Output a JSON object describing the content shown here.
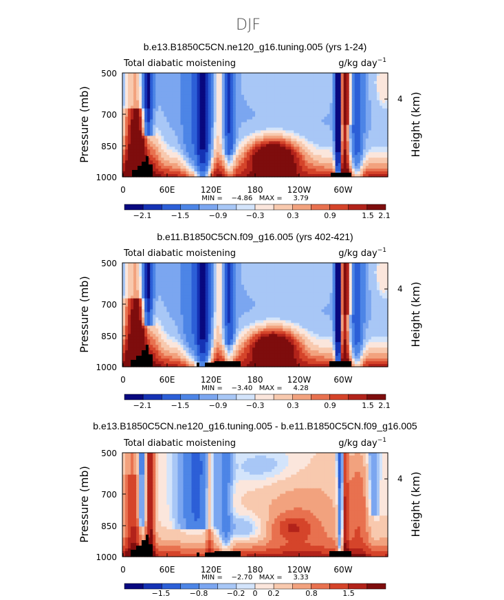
{
  "page_title": "DJF",
  "colors": {
    "scale": [
      "#08087f",
      "#1532b4",
      "#2c5fd7",
      "#4d85e6",
      "#7ba6f0",
      "#a8c7f6",
      "#d3e4fb",
      "#fbe6dc",
      "#f8c9ae",
      "#f2a27e",
      "#e8714f",
      "#d5442a",
      "#b2231a",
      "#7e0d0d"
    ],
    "land": "#000000"
  },
  "chart_data": [
    {
      "type": "contour",
      "title": "b.e13.B1850C5CN.ne120_g16.tuning.005 (yrs 1-24)",
      "left_label": "Total diabatic moistening",
      "units": "g/kg day",
      "units_exp": "−1",
      "ylabel": "Pressure (mb)",
      "ylabel_right": "Height (km)",
      "y_ticks": [
        "500",
        "700",
        "850",
        "1000"
      ],
      "y_right_ticks": [
        "4"
      ],
      "x_ticks": [
        "0",
        "60E",
        "120E",
        "180",
        "120W",
        "60W"
      ],
      "stats": "MIN =    −4.86   MAX =     3.79",
      "colorbar_ticks": [
        "−2.1",
        "−1.5",
        "−0.9",
        "−0.3",
        "0.3",
        "0.9",
        "1.5",
        "2.1"
      ],
      "pattern": "A",
      "scale": 1.0
    },
    {
      "type": "contour",
      "title": "b.e11.B1850C5CN.f09_g16.005 (yrs 402-421)",
      "left_label": "Total diabatic moistening",
      "units": "g/kg day",
      "units_exp": "−1",
      "ylabel": "Pressure (mb)",
      "ylabel_right": "Height (km)",
      "y_ticks": [
        "500",
        "700",
        "850",
        "1000"
      ],
      "y_right_ticks": [
        "4"
      ],
      "x_ticks": [
        "0",
        "60E",
        "120E",
        "180",
        "120W",
        "60W"
      ],
      "stats": "MIN =    −3.40   MAX =     4.28",
      "colorbar_ticks": [
        "−2.1",
        "−1.5",
        "−0.9",
        "−0.3",
        "0.3",
        "0.9",
        "1.5",
        "2.1"
      ],
      "pattern": "A",
      "scale": 0.95
    },
    {
      "type": "contour",
      "title": "b.e13.B1850C5CN.ne120_g16.tuning.005 - b.e11.B1850C5CN.f09_g16.005",
      "left_label": "Total diabatic moistening",
      "units": "g/kg day",
      "units_exp": "−1",
      "ylabel": "Pressure (mb)",
      "ylabel_right": "Height (km)",
      "y_ticks": [
        "500",
        "700",
        "850",
        "1000"
      ],
      "y_right_ticks": [
        "4"
      ],
      "x_ticks": [
        "0",
        "60E",
        "120E",
        "180",
        "120W",
        "60W"
      ],
      "stats": "MIN =    −2.70   MAX =     3.33",
      "colorbar_ticks": [
        "−1.5",
        "−0.8",
        "−0.2",
        "0",
        "0.2",
        "0.8",
        "1.5"
      ],
      "pattern": "D",
      "scale": 1.0
    }
  ]
}
